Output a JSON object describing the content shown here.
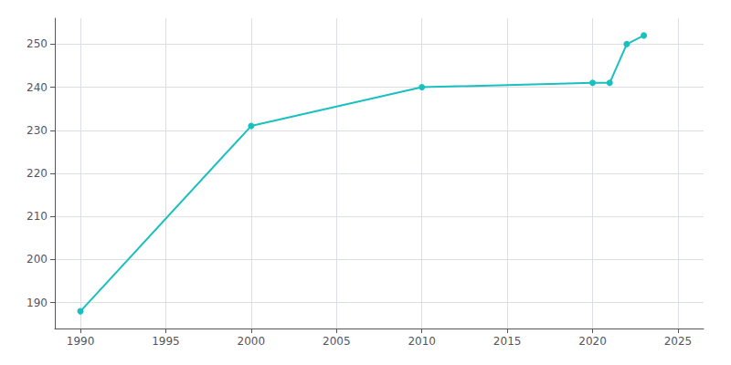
{
  "chart_data": {
    "type": "line",
    "x": [
      1990,
      2000,
      2010,
      2020,
      2021,
      2022,
      2023
    ],
    "values": [
      188,
      231,
      240,
      241,
      241,
      250,
      252
    ],
    "color": "#1abfbf",
    "marker": "circle",
    "xlim": [
      1988.5,
      2026.5
    ],
    "xticks": [
      1990,
      1995,
      2000,
      2005,
      2010,
      2015,
      2020,
      2025
    ],
    "ylim": [
      184,
      256
    ],
    "yticks": [
      190,
      200,
      210,
      220,
      230,
      240,
      250
    ],
    "grid": true
  }
}
